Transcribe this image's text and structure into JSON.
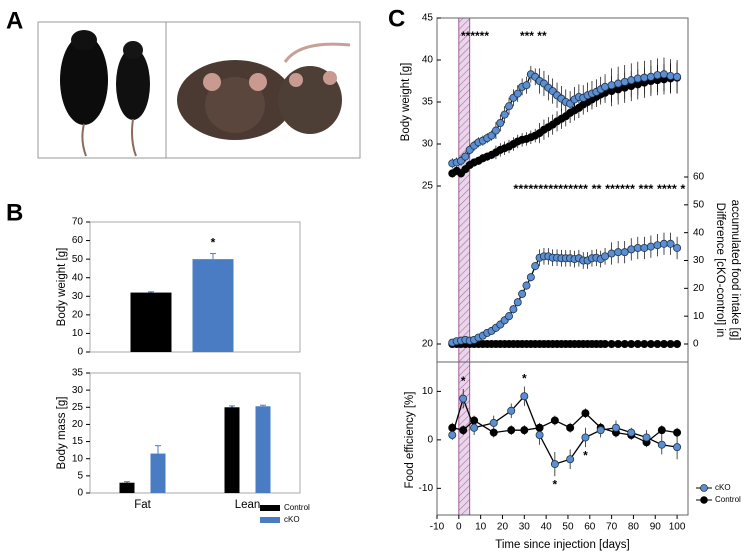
{
  "panel_labels": [
    "A",
    "B",
    "C"
  ],
  "chart_data": [
    {
      "type": "bar",
      "ylabel": "Body weight [g]",
      "categories": [
        null
      ],
      "series": [
        {
          "color": "#000000",
          "values": [
            32
          ],
          "errors": [
            0.4
          ]
        },
        {
          "color": "#4a7cc4",
          "values": [
            50
          ],
          "errors": [
            3
          ],
          "annotations": [
            "*"
          ]
        }
      ],
      "ylim": [
        0,
        70
      ],
      "yticks": [
        0,
        10,
        20,
        30,
        40,
        50,
        60,
        70
      ]
    },
    {
      "type": "bar",
      "ylabel": "Body mass [g]",
      "categories": [
        "Fat",
        "Lean"
      ],
      "series": [
        {
          "name": "Control",
          "color": "#000000",
          "values": [
            3,
            25
          ],
          "errors": [
            0.3,
            0.4
          ]
        },
        {
          "name": "cKO",
          "color": "#4a7cc4",
          "values": [
            11.5,
            25.3
          ],
          "errors": [
            2.3,
            0.3
          ]
        }
      ],
      "ylim": [
        0,
        35
      ],
      "yticks": [
        0,
        5,
        10,
        15,
        20,
        25,
        30,
        35
      ],
      "legend": "lower right"
    },
    {
      "type": "line",
      "ylabel": "Body weight [g]",
      "xlim": [
        -10,
        105
      ],
      "ylim": [
        20,
        45
      ],
      "axis_break": [
        20,
        25
      ],
      "yticks": [
        20,
        25,
        30,
        35,
        40,
        45
      ],
      "shaded_region": [
        0,
        5
      ],
      "x": [
        -3,
        -1,
        1,
        3,
        5,
        7,
        9,
        11,
        13,
        15,
        17,
        19,
        21,
        23,
        25,
        27,
        29,
        31,
        33,
        35,
        37,
        39,
        41,
        43,
        45,
        47,
        49,
        51,
        53,
        55,
        57,
        59,
        61,
        63,
        65,
        67,
        70,
        73,
        76,
        79,
        82,
        85,
        88,
        91,
        94,
        97,
        100
      ],
      "series": [
        {
          "name": "cKO",
          "color": "#5b8fd0",
          "values": [
            27.7,
            27.8,
            28,
            28.5,
            29.3,
            29.8,
            30.2,
            30.4,
            30.7,
            31,
            31.6,
            32.5,
            33.5,
            34.5,
            35.5,
            36,
            36.8,
            37,
            38.3,
            38,
            37.5,
            37.2,
            36.7,
            36.3,
            35.8,
            35.4,
            35,
            34.8,
            35.3,
            35.6,
            35.5,
            35.8,
            36,
            36.2,
            36.5,
            36.8,
            37,
            37.2,
            37.4,
            37.6,
            37.8,
            37.9,
            38,
            38.2,
            38.3,
            38.1,
            38
          ],
          "errors": [
            0.6,
            0.6,
            0.6,
            0.6,
            0.6,
            0.6,
            0.6,
            0.6,
            0.6,
            0.6,
            1,
            1,
            1,
            1,
            1,
            1,
            1,
            1,
            1,
            1,
            1.5,
            1.5,
            1.5,
            1.5,
            1.5,
            1.5,
            1.5,
            1.5,
            1.5,
            1.5,
            1.5,
            1.5,
            1.5,
            1.5,
            1.5,
            1.5,
            2,
            2,
            2,
            2,
            2,
            2,
            2,
            2,
            2,
            2,
            2
          ]
        },
        {
          "name": "Control",
          "color": "#000000",
          "values": [
            26.5,
            26.8,
            26.5,
            27,
            27.5,
            27.8,
            28,
            28.3,
            28.5,
            28.7,
            29,
            29.3,
            29.5,
            29.7,
            30,
            30.3,
            30.5,
            30.6,
            30.8,
            31,
            31.3,
            31.7,
            32,
            32.3,
            32.7,
            33,
            33.3,
            33.7,
            34,
            34.3,
            34.7,
            35,
            35.3,
            35.6,
            35.9,
            36.1,
            36.3,
            36.5,
            36.7,
            36.9,
            37.1,
            37.3,
            37.5,
            37.6,
            37.7,
            37.8,
            37.9
          ],
          "errors": [
            0.5,
            0.5,
            0.5,
            0.5,
            0.5,
            0.5,
            0.5,
            0.5,
            0.5,
            0.5,
            0.8,
            0.8,
            0.8,
            0.8,
            0.8,
            0.8,
            0.8,
            0.8,
            0.8,
            0.8,
            1.2,
            1.2,
            1.2,
            1.2,
            1.2,
            1.2,
            1.2,
            1.2,
            1.2,
            1.2,
            1.2,
            1.2,
            1.2,
            1.2,
            1.2,
            1.2,
            1.8,
            1.8,
            1.8,
            1.8,
            1.8,
            1.8,
            1.8,
            1.8,
            1.8,
            1.8,
            1.8
          ]
        }
      ],
      "annotations": [
        {
          "x": 1,
          "text": "******"
        },
        {
          "x": 28,
          "text": "*** **"
        }
      ]
    },
    {
      "type": "line",
      "y2label": [
        "Difference [cKO-control] in",
        "accumulated food intake [g]"
      ],
      "xlim": [
        -10,
        105
      ],
      "y2lim": [
        0,
        60
      ],
      "y2ticks": [
        0,
        10,
        20,
        30,
        40,
        50,
        60
      ],
      "x": [
        -3,
        -1,
        1,
        3,
        5,
        7,
        9,
        11,
        13,
        15,
        17,
        19,
        21,
        23,
        25,
        27,
        29,
        31,
        33,
        35,
        37,
        39,
        41,
        43,
        45,
        47,
        49,
        51,
        53,
        55,
        57,
        59,
        61,
        63,
        65,
        67,
        70,
        73,
        76,
        79,
        82,
        85,
        88,
        91,
        94,
        97,
        100
      ],
      "series": [
        {
          "name": "cKO",
          "color": "#5b8fd0",
          "axis": "y2",
          "values": [
            0.5,
            1,
            1.2,
            1.5,
            1.2,
            1.5,
            2.3,
            3,
            4,
            4.7,
            5.8,
            7,
            8.5,
            10,
            12.5,
            15,
            18,
            21,
            24,
            28,
            31,
            31.5,
            31.5,
            31,
            31,
            30.8,
            30.8,
            30.8,
            30.5,
            30.8,
            30,
            30,
            30.8,
            31,
            30.5,
            31.5,
            32.5,
            33,
            33,
            34,
            34.5,
            34.5,
            35,
            35.5,
            36,
            36,
            34.5
          ],
          "errors": [
            0.5,
            0.5,
            0.5,
            0.5,
            0.5,
            0.5,
            0.5,
            0.5,
            0.5,
            0.5,
            1.5,
            1.5,
            1.5,
            1.5,
            1.5,
            1.5,
            1.5,
            1.5,
            1.5,
            1.5,
            3,
            3,
            3,
            3,
            3,
            3,
            3,
            3,
            3,
            3,
            3,
            3,
            3,
            3,
            3,
            3,
            4,
            4,
            4,
            4,
            4,
            4,
            4,
            4,
            4,
            4,
            4
          ]
        },
        {
          "name": "Control",
          "color": "#000000",
          "axis": "y2",
          "values": [
            0,
            0,
            0,
            0,
            0,
            0,
            0,
            0,
            0,
            0,
            0,
            0,
            0,
            0,
            0,
            0,
            0,
            0,
            0,
            0,
            0,
            0,
            0,
            0,
            0,
            0,
            0,
            0,
            0,
            0,
            0,
            0,
            0,
            0,
            0,
            0,
            0,
            0,
            0,
            0,
            0,
            0,
            0,
            0,
            0,
            0,
            0
          ]
        }
      ],
      "annotations": [
        {
          "x": 25,
          "text": "*************** ** ****** *** **** *"
        }
      ]
    },
    {
      "type": "line",
      "ylabel": "Food efficiency [%]",
      "xlabel": "Time since injection [days]",
      "xlim": [
        -10,
        105
      ],
      "xticks": [
        -10,
        0,
        10,
        20,
        30,
        40,
        50,
        60,
        70,
        80,
        90,
        100
      ],
      "ylim": [
        -15.5,
        14
      ],
      "yticks": [
        -10,
        0,
        10
      ],
      "legend": "lower right",
      "x": [
        -3,
        2,
        7,
        16,
        24,
        30,
        37,
        44,
        51,
        58,
        65,
        72,
        79,
        86,
        93,
        100
      ],
      "series": [
        {
          "name": "cKO",
          "color": "#5b8fd0",
          "values": [
            1,
            8.5,
            2.5,
            3.5,
            6,
            9,
            1,
            -5,
            -4,
            0.5,
            2,
            2.5,
            1.5,
            0.5,
            -1,
            -1.5
          ],
          "errors": [
            1,
            2,
            1.5,
            1.5,
            1.5,
            2,
            2,
            2.5,
            2,
            2,
            1.5,
            1.5,
            1,
            1.5,
            2,
            2.5
          ]
        },
        {
          "name": "Control",
          "color": "#000000",
          "values": [
            2.5,
            2,
            4,
            1.5,
            2,
            2,
            2.5,
            4,
            2.5,
            5.5,
            2.5,
            1.5,
            1,
            -0.5,
            2,
            1.5
          ],
          "errors": [
            1,
            1,
            1,
            1,
            1,
            1,
            1,
            1,
            1,
            1,
            1,
            1,
            1,
            1,
            1,
            1
          ]
        }
      ],
      "annotations": [
        {
          "x": 2,
          "text": "*",
          "position": "above"
        },
        {
          "x": 30,
          "text": "*",
          "position": "above"
        },
        {
          "x": 44,
          "text": "*",
          "position": "below"
        },
        {
          "x": 58,
          "text": "*",
          "position": "below"
        }
      ]
    }
  ]
}
